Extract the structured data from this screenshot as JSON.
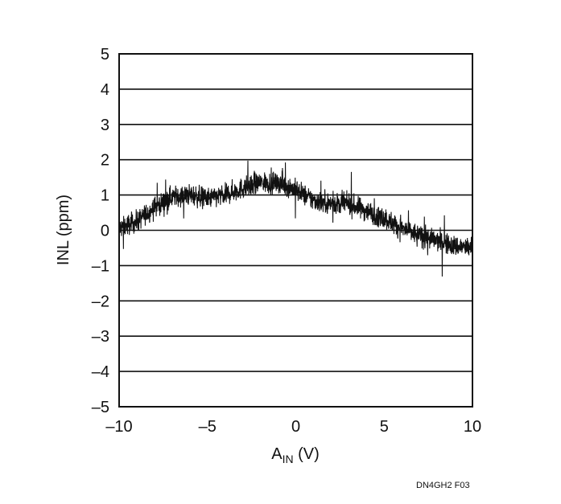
{
  "chart_data": {
    "type": "line",
    "title": "",
    "xlabel": {
      "main": "A",
      "sub": "IN",
      "unit": " (V)"
    },
    "ylabel": "INL (ppm)",
    "xlim": [
      -10,
      10
    ],
    "ylim": [
      -5,
      5
    ],
    "x_ticks": [
      -10,
      -5,
      0,
      5,
      10
    ],
    "x_tick_labels": [
      "–10",
      "–5",
      "0",
      "5",
      "10"
    ],
    "y_ticks": [
      5,
      4,
      3,
      2,
      1,
      0,
      -1,
      -2,
      -3,
      -4,
      -5
    ],
    "y_tick_labels": [
      "5",
      "4",
      "3",
      "2",
      "1",
      "0",
      "–1",
      "–2",
      "–3",
      "–4",
      "–5"
    ],
    "grid": {
      "horizontal": true,
      "vertical": false
    },
    "series": [
      {
        "color": "#111111",
        "x": [
          -10,
          -9,
          -8,
          -7,
          -6,
          -5,
          -4,
          -3,
          -2,
          -1,
          0,
          1,
          2,
          3,
          4,
          5,
          6,
          7,
          8,
          9,
          10
        ],
        "values": [
          0.05,
          0.25,
          0.65,
          0.95,
          1.0,
          0.9,
          1.0,
          1.2,
          1.35,
          1.35,
          1.15,
          0.85,
          0.75,
          0.75,
          0.55,
          0.35,
          0.05,
          -0.15,
          -0.3,
          -0.45,
          -0.5
        ]
      }
    ]
  },
  "figure_id": "DN4GH2 F03"
}
